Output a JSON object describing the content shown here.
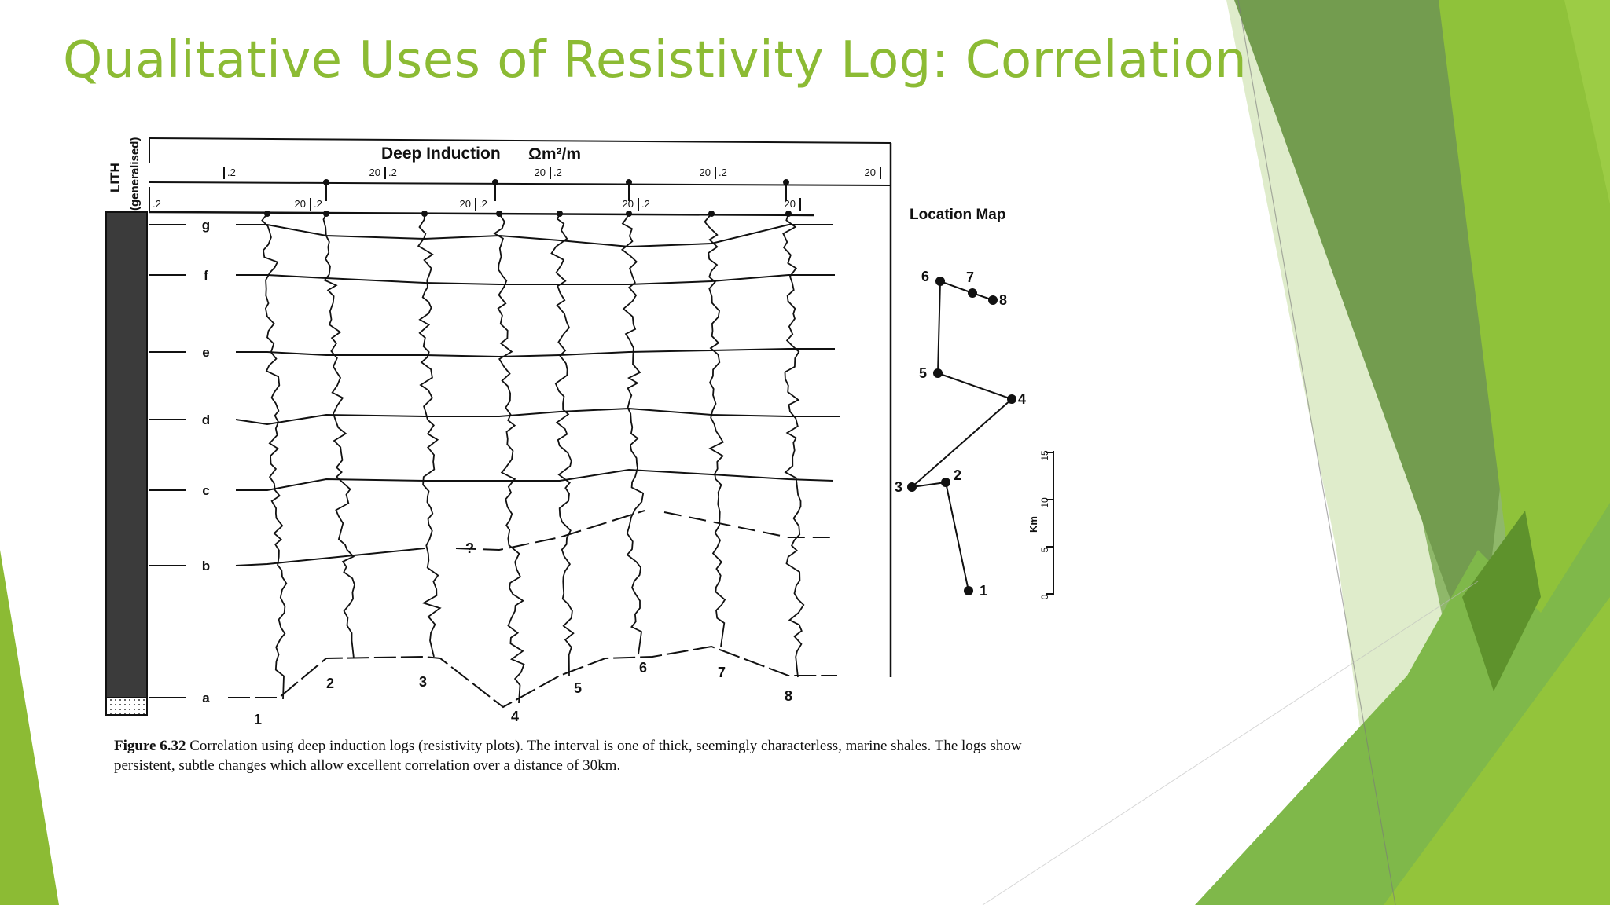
{
  "slide": {
    "title": "Qualitative Uses of Resistivity Log: Correlation",
    "accent_color": "#8cbb34"
  },
  "figure": {
    "lith_label": "LITH",
    "lith_sub": "(generalised)",
    "header_title": "Deep Induction",
    "header_unit": "Ωm²/m",
    "scale_min": ".2",
    "scale_max": "20",
    "units": [
      "g",
      "f",
      "e",
      "d",
      "c",
      "b",
      "a"
    ],
    "wells": [
      "1",
      "2",
      "3",
      "4",
      "5",
      "6",
      "7",
      "8"
    ],
    "uncertain_mark": "?",
    "location_map": {
      "title": "Location Map",
      "points": [
        "1",
        "2",
        "3",
        "4",
        "5",
        "6",
        "7",
        "8"
      ],
      "scale_unit": "Km",
      "scale_ticks": [
        "0",
        "5",
        "10",
        "15"
      ]
    }
  },
  "caption": {
    "label": "Figure 6.32",
    "text": " Correlation using deep induction logs (resistivity plots). The interval is one of thick, seemingly characterless, marine shales. The logs show persistent, subtle changes which allow excellent correlation over a distance of 30km."
  }
}
